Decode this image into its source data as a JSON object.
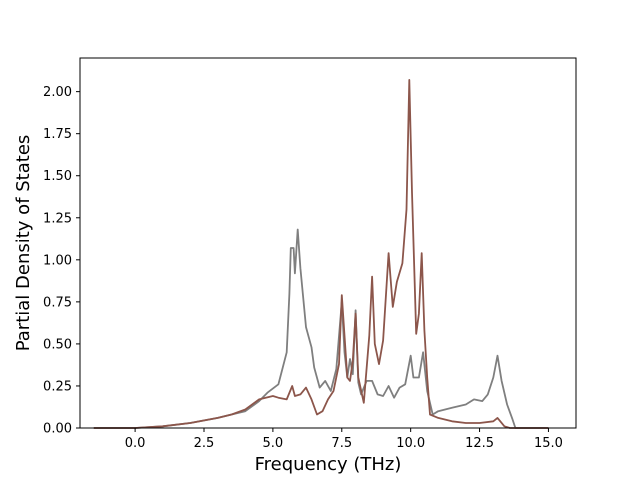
{
  "chart_data": {
    "type": "line",
    "title": "",
    "xlabel": "Frequency (THz)",
    "ylabel": "Partial Density of States",
    "xlim": [
      -2.0,
      16.0
    ],
    "ylim": [
      0.0,
      2.2
    ],
    "xticks": [
      0.0,
      2.5,
      5.0,
      7.5,
      10.0,
      12.5,
      15.0
    ],
    "xtick_labels": [
      "0.0",
      "2.5",
      "5.0",
      "7.5",
      "10.0",
      "12.5",
      "15.0"
    ],
    "yticks": [
      0.0,
      0.25,
      0.5,
      0.75,
      1.0,
      1.25,
      1.5,
      1.75,
      2.0
    ],
    "ytick_labels": [
      "0.00",
      "0.25",
      "0.50",
      "0.75",
      "1.00",
      "1.25",
      "1.50",
      "1.75",
      "2.00"
    ],
    "grid": false,
    "legend": "none",
    "series": [
      {
        "color": "#7f7f7f",
        "points": [
          [
            -1.5,
            0.0
          ],
          [
            0.0,
            0.0
          ],
          [
            1.0,
            0.01
          ],
          [
            2.0,
            0.03
          ],
          [
            3.0,
            0.06
          ],
          [
            3.5,
            0.08
          ],
          [
            4.0,
            0.1
          ],
          [
            4.5,
            0.16
          ],
          [
            4.8,
            0.21
          ],
          [
            5.2,
            0.26
          ],
          [
            5.5,
            0.45
          ],
          [
            5.6,
            0.8
          ],
          [
            5.65,
            1.07
          ],
          [
            5.75,
            1.07
          ],
          [
            5.8,
            0.92
          ],
          [
            5.9,
            1.18
          ],
          [
            6.0,
            0.95
          ],
          [
            6.2,
            0.6
          ],
          [
            6.4,
            0.48
          ],
          [
            6.5,
            0.36
          ],
          [
            6.7,
            0.24
          ],
          [
            6.9,
            0.28
          ],
          [
            7.1,
            0.22
          ],
          [
            7.3,
            0.35
          ],
          [
            7.5,
            0.75
          ],
          [
            7.6,
            0.45
          ],
          [
            7.7,
            0.3
          ],
          [
            7.8,
            0.41
          ],
          [
            7.9,
            0.32
          ],
          [
            8.0,
            0.7
          ],
          [
            8.1,
            0.27
          ],
          [
            8.2,
            0.2
          ],
          [
            8.4,
            0.28
          ],
          [
            8.6,
            0.28
          ],
          [
            8.8,
            0.2
          ],
          [
            9.0,
            0.19
          ],
          [
            9.2,
            0.25
          ],
          [
            9.4,
            0.18
          ],
          [
            9.6,
            0.24
          ],
          [
            9.8,
            0.26
          ],
          [
            10.0,
            0.43
          ],
          [
            10.1,
            0.3
          ],
          [
            10.3,
            0.3
          ],
          [
            10.45,
            0.45
          ],
          [
            10.6,
            0.22
          ],
          [
            10.8,
            0.08
          ],
          [
            11.0,
            0.1
          ],
          [
            11.5,
            0.12
          ],
          [
            12.0,
            0.14
          ],
          [
            12.3,
            0.17
          ],
          [
            12.6,
            0.16
          ],
          [
            12.8,
            0.2
          ],
          [
            13.0,
            0.3
          ],
          [
            13.15,
            0.43
          ],
          [
            13.3,
            0.28
          ],
          [
            13.5,
            0.14
          ],
          [
            13.7,
            0.05
          ],
          [
            13.8,
            0.0
          ],
          [
            15.0,
            0.0
          ]
        ]
      },
      {
        "color": "#8c564b",
        "points": [
          [
            -1.5,
            0.0
          ],
          [
            0.0,
            0.0
          ],
          [
            1.0,
            0.01
          ],
          [
            2.0,
            0.03
          ],
          [
            3.0,
            0.06
          ],
          [
            3.5,
            0.08
          ],
          [
            4.0,
            0.11
          ],
          [
            4.5,
            0.17
          ],
          [
            5.0,
            0.19
          ],
          [
            5.2,
            0.18
          ],
          [
            5.5,
            0.17
          ],
          [
            5.7,
            0.25
          ],
          [
            5.8,
            0.19
          ],
          [
            6.0,
            0.2
          ],
          [
            6.2,
            0.24
          ],
          [
            6.4,
            0.17
          ],
          [
            6.6,
            0.08
          ],
          [
            6.8,
            0.1
          ],
          [
            7.0,
            0.17
          ],
          [
            7.2,
            0.22
          ],
          [
            7.4,
            0.38
          ],
          [
            7.5,
            0.79
          ],
          [
            7.6,
            0.55
          ],
          [
            7.7,
            0.3
          ],
          [
            7.8,
            0.28
          ],
          [
            7.9,
            0.4
          ],
          [
            8.0,
            0.68
          ],
          [
            8.1,
            0.3
          ],
          [
            8.3,
            0.15
          ],
          [
            8.5,
            0.55
          ],
          [
            8.6,
            0.9
          ],
          [
            8.7,
            0.5
          ],
          [
            8.85,
            0.38
          ],
          [
            9.0,
            0.52
          ],
          [
            9.2,
            1.04
          ],
          [
            9.35,
            0.72
          ],
          [
            9.5,
            0.87
          ],
          [
            9.7,
            0.98
          ],
          [
            9.85,
            1.3
          ],
          [
            9.95,
            2.07
          ],
          [
            10.05,
            1.4
          ],
          [
            10.2,
            0.56
          ],
          [
            10.3,
            0.68
          ],
          [
            10.4,
            1.04
          ],
          [
            10.5,
            0.58
          ],
          [
            10.6,
            0.3
          ],
          [
            10.7,
            0.08
          ],
          [
            11.0,
            0.06
          ],
          [
            11.5,
            0.04
          ],
          [
            12.0,
            0.03
          ],
          [
            12.5,
            0.03
          ],
          [
            13.0,
            0.04
          ],
          [
            13.15,
            0.06
          ],
          [
            13.4,
            0.01
          ],
          [
            13.6,
            0.0
          ],
          [
            15.0,
            0.0
          ]
        ]
      }
    ]
  }
}
